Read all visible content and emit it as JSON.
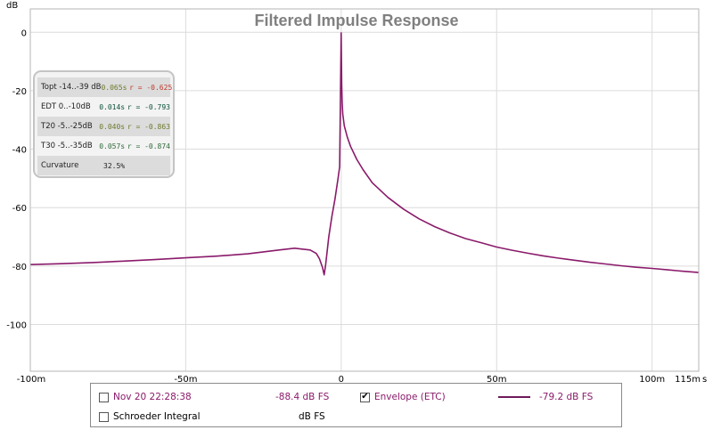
{
  "chart_data": {
    "type": "line",
    "title": "Filtered Impulse Response",
    "y_unit": "dB",
    "x_unit": "s",
    "xlim": [
      -100,
      115
    ],
    "ylim": [
      -116,
      8
    ],
    "x_ticks": [
      {
        "v": -100,
        "label": "-100m"
      },
      {
        "v": -50,
        "label": "-50m"
      },
      {
        "v": 0,
        "label": "0"
      },
      {
        "v": 50,
        "label": "50m"
      },
      {
        "v": 100,
        "label": "100m"
      },
      {
        "v": 115,
        "label": "115m"
      }
    ],
    "y_ticks": [
      0,
      -20,
      -40,
      -60,
      -80,
      -100
    ],
    "grid": true,
    "series": [
      {
        "name": "Envelope (ETC)",
        "color": "#8a1a6a",
        "x": [
          -100,
          -90,
          -80,
          -70,
          -60,
          -50,
          -40,
          -30,
          -20,
          -15,
          -10,
          -8,
          -7,
          -6,
          -5.5,
          -5,
          -4,
          -3,
          -2,
          -1,
          -0.5,
          0,
          0.15,
          0.3,
          0.5,
          1,
          2,
          3,
          5,
          7,
          10,
          15,
          20,
          25,
          30,
          35,
          40,
          45,
          50,
          55,
          60,
          65,
          70,
          75,
          80,
          85,
          90,
          95,
          100,
          105,
          110,
          115
        ],
        "y": [
          -79.5,
          -79.2,
          -78.8,
          -78.3,
          -77.8,
          -77.2,
          -76.6,
          -75.8,
          -74.5,
          -73.9,
          -74.5,
          -75.7,
          -77.5,
          -80.5,
          -83,
          -79.5,
          -70,
          -63,
          -57,
          -50,
          -46,
          -0.2,
          -18,
          -24,
          -28,
          -32,
          -36,
          -39,
          -43.5,
          -47,
          -51.5,
          -56.5,
          -60.5,
          -63.8,
          -66.5,
          -68.7,
          -70.6,
          -72,
          -73.5,
          -74.6,
          -75.6,
          -76.5,
          -77.3,
          -78,
          -78.7,
          -79.3,
          -79.9,
          -80.4,
          -80.8,
          -81.3,
          -81.8,
          -82.2
        ]
      }
    ]
  },
  "info_box": {
    "rows": [
      {
        "label": "Topt -14..-39 dB",
        "value": "0.065s",
        "r": "r = -0.625"
      },
      {
        "label": "EDT  0..-10dB",
        "value": "0.014s",
        "r": "r = -0.793"
      },
      {
        "label": "T20 -5..-25dB",
        "value": "0.040s",
        "r": "r = -0.863"
      },
      {
        "label": "T30 -5..-35dB",
        "value": "0.057s",
        "r": "r = -0.874"
      },
      {
        "label": "Curvature",
        "value": "32.5%",
        "r": ""
      }
    ]
  },
  "legend": {
    "item1_label": "Nov 20 22:28:38",
    "item1_value": "-88.4 dB FS",
    "item2_label": "Envelope (ETC)",
    "item2_value": "-79.2 dB FS",
    "item3_label": "Schroeder Integral",
    "item3_value": "dB FS",
    "check_mark": "✔"
  }
}
